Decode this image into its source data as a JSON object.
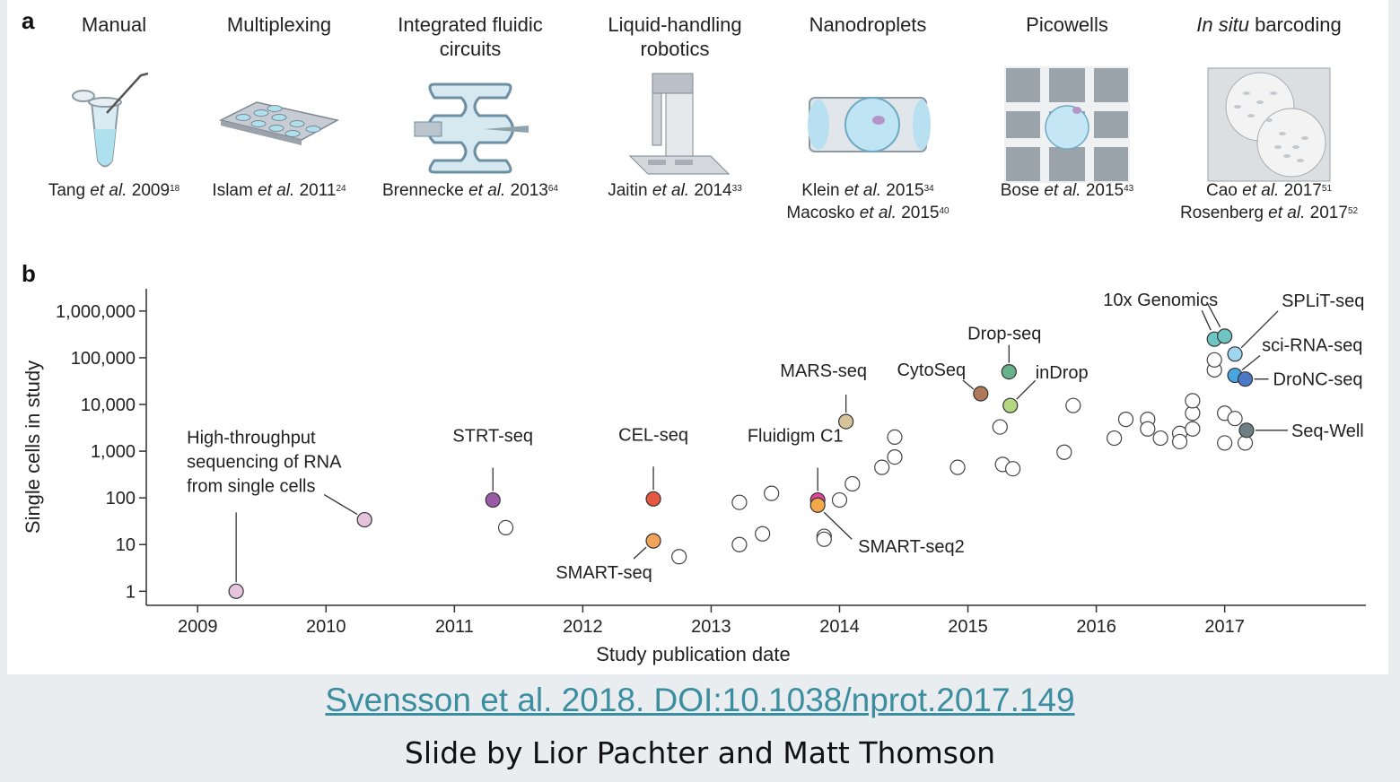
{
  "panel_a_label": "a",
  "panel_b_label": "b",
  "technologies": [
    {
      "title": "Manual",
      "ref_lines": [
        {
          "author": "Tang",
          "year": "2009",
          "sup": "18"
        }
      ]
    },
    {
      "title": "Multiplexing",
      "ref_lines": [
        {
          "author": "Islam",
          "year": "2011",
          "sup": "24"
        }
      ]
    },
    {
      "title": "Integrated fluidic circuits",
      "ref_lines": [
        {
          "author": "Brennecke",
          "year": "2013",
          "sup": "64"
        }
      ]
    },
    {
      "title": "Liquid-handling robotics",
      "ref_lines": [
        {
          "author": "Jaitin",
          "year": "2014",
          "sup": "33"
        }
      ]
    },
    {
      "title": "Nanodroplets",
      "ref_lines": [
        {
          "author": "Klein",
          "year": "2015",
          "sup": "34"
        },
        {
          "author": "Macosko",
          "year": "2015",
          "sup": "40"
        }
      ]
    },
    {
      "title": "Picowells",
      "ref_lines": [
        {
          "author": "Bose",
          "year": "2015",
          "sup": "43"
        }
      ]
    },
    {
      "title_italic": "In situ",
      "title": " barcoding",
      "ref_lines": [
        {
          "author": "Cao",
          "year": "2017",
          "sup": "51"
        },
        {
          "author": "Rosenberg",
          "year": "2017",
          "sup": "52"
        }
      ]
    }
  ],
  "et_al": "et al.",
  "chart_data": {
    "type": "scatter",
    "xlabel": "Study publication date",
    "ylabel": "Single cells in study",
    "x_ticks": [
      2009,
      2010,
      2011,
      2012,
      2013,
      2014,
      2015,
      2016,
      2017
    ],
    "x_range": [
      2008.6,
      2018.1
    ],
    "y_scale": "log",
    "y_ticks": [
      {
        "v": 1,
        "label": "1"
      },
      {
        "v": 10,
        "label": "10"
      },
      {
        "v": 100,
        "label": "100"
      },
      {
        "v": 1000,
        "label": "1,000"
      },
      {
        "v": 10000,
        "label": "10,000"
      },
      {
        "v": 100000,
        "label": "100,000"
      },
      {
        "v": 1000000,
        "label": "1,000,000"
      }
    ],
    "y_range": [
      0.5,
      3000000
    ],
    "labeled_points": [
      {
        "name": "High-throughput sequencing of RNA from single cells",
        "x": 2009.3,
        "y": 1,
        "color": "#e6c3dd"
      },
      {
        "name": "",
        "x": 2010.3,
        "y": 34,
        "color": "#e6c3dd"
      },
      {
        "name": "STRT-seq",
        "x": 2011.3,
        "y": 90,
        "color": "#9a5ba7"
      },
      {
        "name": "CEL-seq",
        "x": 2012.55,
        "y": 95,
        "color": "#e5573e"
      },
      {
        "name": "SMART-seq",
        "x": 2012.55,
        "y": 12,
        "color": "#f2a35a"
      },
      {
        "name": "MARS-seq",
        "x": 2014.05,
        "y": 4300,
        "color": "#d7c39a"
      },
      {
        "name": "Fluidigm C1",
        "x": 2013.83,
        "y": 90,
        "color": "#e3479b"
      },
      {
        "name": "SMART-seq2",
        "x": 2013.83,
        "y": 70,
        "color": "#f4a84a"
      },
      {
        "name": "CytoSeq",
        "x": 2015.1,
        "y": 17000,
        "color": "#b07a5a"
      },
      {
        "name": "Drop-seq",
        "x": 2015.32,
        "y": 50000,
        "color": "#67b28b"
      },
      {
        "name": "inDrop",
        "x": 2015.33,
        "y": 9500,
        "color": "#b4d681"
      },
      {
        "name": "10x Genomics",
        "x": 2016.92,
        "y": 250000,
        "color": "#6fc5c2"
      },
      {
        "name": "",
        "x": 2017.0,
        "y": 290000,
        "color": "#6fc5c2"
      },
      {
        "name": "SPLiT-seq",
        "x": 2017.08,
        "y": 120000,
        "color": "#9fd6f0"
      },
      {
        "name": "sci-RNA-seq",
        "x": 2017.08,
        "y": 42000,
        "color": "#49a5df"
      },
      {
        "name": "DroNC-seq",
        "x": 2017.16,
        "y": 35000,
        "color": "#4b78c7"
      },
      {
        "name": "Seq-Well",
        "x": 2017.17,
        "y": 2800,
        "color": "#6b7f85"
      }
    ],
    "open_points": [
      [
        2011.4,
        23
      ],
      [
        2012.75,
        5.5
      ],
      [
        2013.22,
        80
      ],
      [
        2013.22,
        10
      ],
      [
        2013.4,
        17
      ],
      [
        2013.47,
        125
      ],
      [
        2013.88,
        15
      ],
      [
        2013.88,
        13
      ],
      [
        2014.0,
        90
      ],
      [
        2014.1,
        200
      ],
      [
        2014.33,
        450
      ],
      [
        2014.43,
        2000
      ],
      [
        2014.43,
        750
      ],
      [
        2014.92,
        450
      ],
      [
        2015.25,
        3300
      ],
      [
        2015.27,
        520
      ],
      [
        2015.35,
        420
      ],
      [
        2015.75,
        950
      ],
      [
        2015.82,
        9500
      ],
      [
        2016.14,
        1900
      ],
      [
        2016.23,
        4800
      ],
      [
        2016.4,
        4800
      ],
      [
        2016.4,
        3000
      ],
      [
        2016.5,
        1900
      ],
      [
        2016.65,
        2400
      ],
      [
        2016.65,
        1600
      ],
      [
        2016.75,
        3000
      ],
      [
        2016.75,
        6500
      ],
      [
        2016.75,
        12000
      ],
      [
        2016.92,
        55000
      ],
      [
        2016.92,
        90000
      ],
      [
        2017.0,
        6500
      ],
      [
        2017.0,
        1500
      ],
      [
        2017.08,
        5000
      ],
      [
        2017.16,
        1500
      ]
    ]
  },
  "citation": "Svensson et al. 2018. DOI:10.1038/nprot.2017.149",
  "credit": "Slide by Lior Pachter and Matt Thomson"
}
